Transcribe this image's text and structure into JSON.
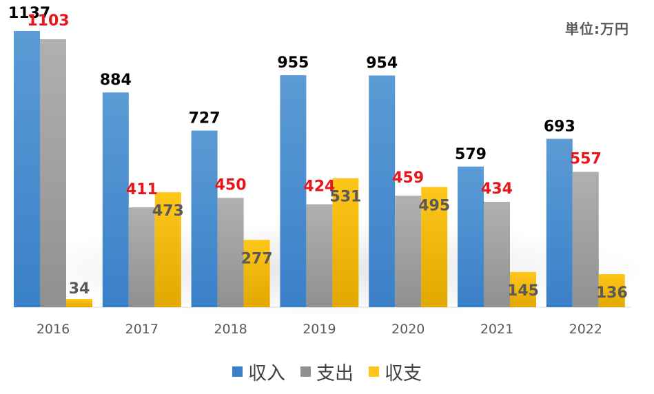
{
  "chart_data": {
    "type": "bar",
    "unit_label": "単位:万円",
    "categories": [
      "2016",
      "2017",
      "2018",
      "2019",
      "2020",
      "2021",
      "2022"
    ],
    "series": [
      {
        "name": "収入",
        "values": [
          1137,
          884,
          727,
          955,
          954,
          579,
          693
        ],
        "label_color": "#000000"
      },
      {
        "name": "支出",
        "values": [
          1103,
          411,
          450,
          424,
          459,
          434,
          557
        ],
        "label_color": "#e8161b"
      },
      {
        "name": "収支",
        "values": [
          34,
          473,
          277,
          531,
          495,
          145,
          136
        ],
        "label_color": "#595959"
      }
    ],
    "colors": {
      "income_top": "#5b9bd5",
      "income_bottom": "#3a80c8",
      "expense_top": "#b0b0b0",
      "expense_bottom": "#909090",
      "balance_top": "#ffc61a",
      "balance_bottom": "#e0a800",
      "tick_label": "#595959"
    },
    "ylim": [
      0,
      1137
    ],
    "grid": false,
    "legend_position": "bottom"
  }
}
